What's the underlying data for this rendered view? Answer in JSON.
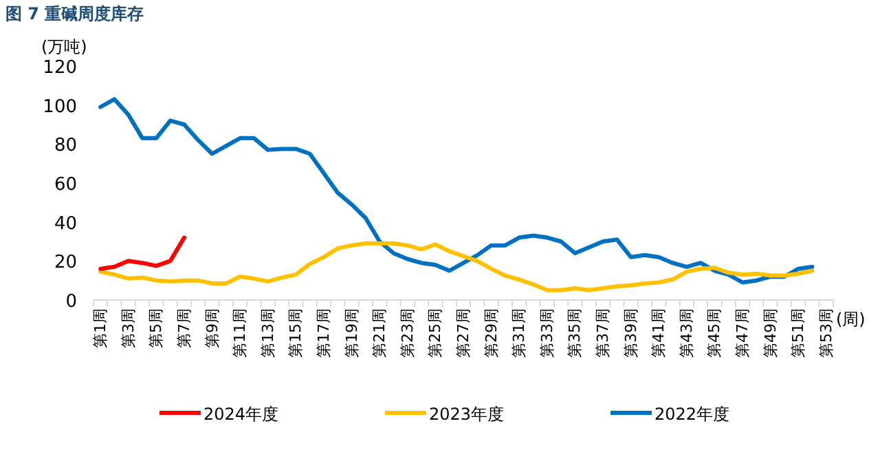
{
  "chart_data": {
    "type": "line",
    "title": "图 7 重碱周度库存",
    "ylabel": "(万吨)",
    "xlabel": "(周)",
    "categories": [
      "第1周",
      null,
      "第3周",
      null,
      "第5周",
      null,
      "第7周",
      null,
      "第9周",
      null,
      "第11周",
      null,
      "第13周",
      null,
      "第15周",
      null,
      "第17周",
      null,
      "第19周",
      null,
      "第21周",
      null,
      "第23周",
      null,
      "第25周",
      null,
      "第27周",
      null,
      "第29周",
      null,
      "第31周",
      null,
      "第33周",
      null,
      "第35周",
      null,
      "第37周",
      null,
      "第39周",
      null,
      "第41周",
      null,
      "第43周",
      null,
      "第45周",
      null,
      "第47周",
      null,
      "第49周",
      null,
      "第51周",
      null,
      "第53周"
    ],
    "ylim": [
      0,
      120
    ],
    "yticks": [
      0,
      20,
      40,
      60,
      80,
      100,
      120
    ],
    "grid": false,
    "legend": "bottom",
    "marker": "none",
    "line_style": "solid",
    "series": [
      {
        "name": "2024年度",
        "color": "#ff0000",
        "values": [
          16,
          17,
          20,
          19,
          17.5,
          20,
          32,
          null,
          null,
          null,
          null,
          null,
          null,
          null,
          null,
          null,
          null,
          null,
          null,
          null,
          null,
          null,
          null,
          null,
          null,
          null,
          null,
          null,
          null,
          null,
          null,
          null,
          null,
          null,
          null,
          null,
          null,
          null,
          null,
          null,
          null,
          null,
          null,
          null,
          null,
          null,
          null,
          null,
          null,
          null,
          null,
          null,
          null
        ]
      },
      {
        "name": "2023年度",
        "color": "#ffc000",
        "values": [
          14.5,
          13,
          11,
          11.5,
          10,
          9.5,
          10,
          10,
          8.5,
          8.5,
          12,
          11,
          9.5,
          11.5,
          13,
          18.5,
          22,
          26.5,
          28,
          29,
          29,
          29,
          28,
          26,
          28.5,
          25,
          22.5,
          20,
          16,
          12.5,
          10.5,
          8,
          5,
          5,
          6,
          5,
          6,
          7,
          7.5,
          8.5,
          9,
          10.5,
          14.5,
          16,
          16.5,
          14,
          13,
          13.5,
          12.5,
          12.5,
          13.5,
          15,
          null
        ]
      },
      {
        "name": "2022年度",
        "color": "#0070c0",
        "values": [
          99,
          103,
          95,
          83,
          83,
          92,
          90,
          82,
          75,
          79,
          83,
          83,
          77,
          77.5,
          77.5,
          75,
          65,
          55,
          49,
          42,
          30,
          24,
          21,
          19,
          18,
          15,
          19,
          23,
          28,
          28,
          32,
          33,
          32,
          30,
          24,
          27,
          30,
          31,
          22,
          23,
          22,
          19,
          17,
          19,
          15,
          13,
          9,
          10,
          12,
          12,
          16,
          17,
          null
        ]
      }
    ]
  }
}
